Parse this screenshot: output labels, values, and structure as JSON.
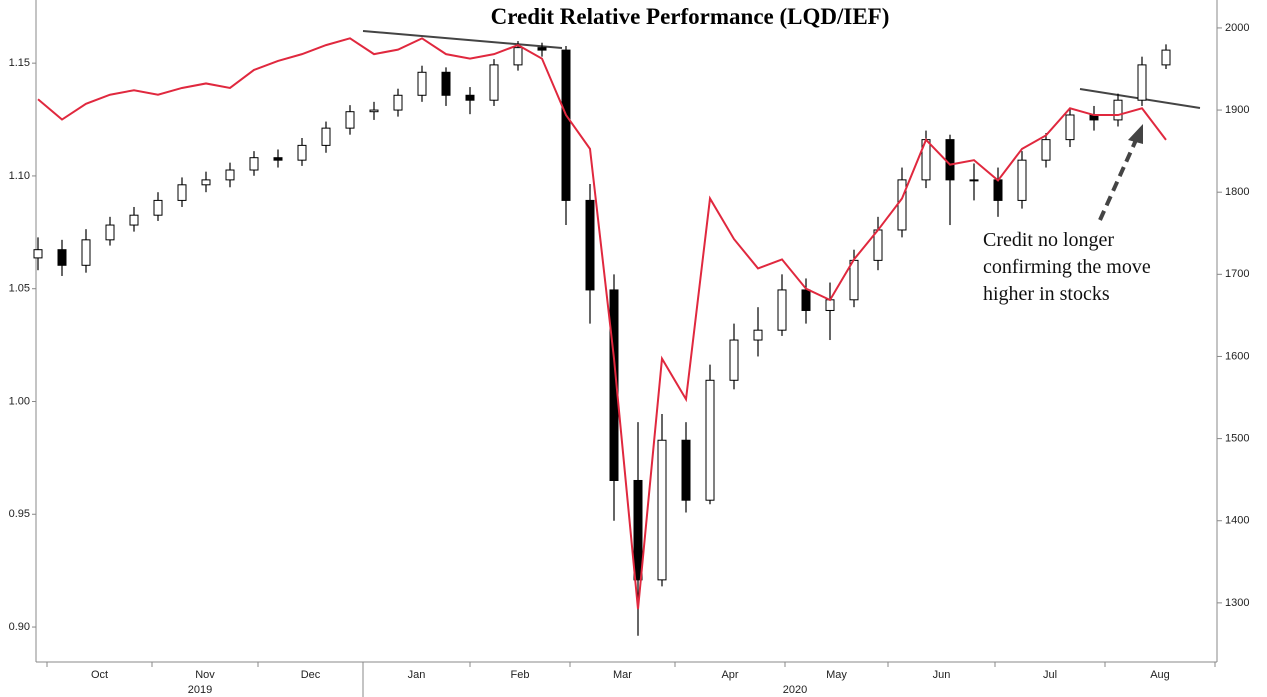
{
  "chart_data": {
    "type": "candlestick",
    "title": "Credit Relative Performance (LQD/IEF)",
    "months": [
      "Oct",
      "Nov",
      "Dec",
      "Jan",
      "Feb",
      "Mar",
      "Apr",
      "May",
      "Jun",
      "Jul",
      "Aug"
    ],
    "years": [
      "2019",
      "2020"
    ],
    "annotation": [
      "Credit no longer",
      "confirming the move",
      "higher in stocks"
    ],
    "ylim": [
      0.8845,
      1.178
    ],
    "yticks": [
      {
        "value": 0.9,
        "label": "0.90"
      },
      0.95,
      {
        "value": 1.0,
        "label": "1.00"
      },
      1.05,
      {
        "value": 1.1,
        "label": "1.10"
      },
      1.15
    ],
    "y2lim": [
      1228,
      2034
    ],
    "y2ticks": [
      1300,
      1400,
      1500,
      1600,
      1700,
      1800,
      1900,
      2000
    ],
    "candles": {
      "axis": "y2",
      "up_color": "#ffffff",
      "down_color": "#000000",
      "open": [
        1720,
        1730,
        1711,
        1742,
        1760,
        1772,
        1790,
        1809,
        1815,
        1827,
        1842,
        1839,
        1857,
        1878,
        1898,
        1900,
        1918,
        1946,
        1918,
        1912,
        1955,
        1976,
        1973,
        1790,
        1681,
        1449,
        1328,
        1498,
        1425,
        1571,
        1620,
        1632,
        1681,
        1656,
        1669,
        1717,
        1754,
        1815,
        1864,
        1815,
        1815,
        1790,
        1839,
        1864,
        1894,
        1888,
        1912,
        1955
      ],
      "high": [
        1745,
        1742,
        1755,
        1770,
        1782,
        1800,
        1818,
        1825,
        1836,
        1850,
        1852,
        1866,
        1886,
        1906,
        1910,
        1926,
        1954,
        1952,
        1928,
        1962,
        1984,
        1982,
        1978,
        1810,
        1700,
        1520,
        1530,
        1520,
        1590,
        1640,
        1660,
        1700,
        1695,
        1690,
        1730,
        1770,
        1830,
        1875,
        1870,
        1835,
        1830,
        1850,
        1872,
        1902,
        1905,
        1920,
        1965,
        1980
      ],
      "low": [
        1705,
        1698,
        1702,
        1735,
        1752,
        1765,
        1782,
        1800,
        1806,
        1820,
        1830,
        1832,
        1848,
        1870,
        1888,
        1892,
        1910,
        1905,
        1895,
        1905,
        1948,
        1965,
        1760,
        1640,
        1400,
        1260,
        1320,
        1410,
        1420,
        1560,
        1600,
        1625,
        1640,
        1620,
        1660,
        1705,
        1745,
        1805,
        1760,
        1790,
        1770,
        1780,
        1830,
        1855,
        1875,
        1880,
        1905,
        1950
      ],
      "close": [
        1730,
        1711,
        1742,
        1760,
        1772,
        1790,
        1809,
        1815,
        1827,
        1842,
        1839,
        1857,
        1878,
        1898,
        1900,
        1918,
        1946,
        1918,
        1912,
        1955,
        1976,
        1973,
        1790,
        1681,
        1449,
        1328,
        1498,
        1425,
        1571,
        1620,
        1632,
        1681,
        1656,
        1669,
        1717,
        1754,
        1815,
        1864,
        1815,
        1815,
        1790,
        1839,
        1864,
        1894,
        1888,
        1912,
        1955,
        1973
      ]
    },
    "overlay": {
      "type": "line",
      "color": "#e0283e",
      "values": [
        1.134,
        1.125,
        1.132,
        1.136,
        1.138,
        1.136,
        1.139,
        1.141,
        1.139,
        1.147,
        1.151,
        1.154,
        1.158,
        1.161,
        1.154,
        1.156,
        1.161,
        1.154,
        1.152,
        1.154,
        1.158,
        1.152,
        1.127,
        1.112,
        1.019,
        0.908,
        1.019,
        1.001,
        1.09,
        1.072,
        1.059,
        1.063,
        1.05,
        1.045,
        1.063,
        1.076,
        1.09,
        1.116,
        1.105,
        1.107,
        1.098,
        1.112,
        1.118,
        1.13,
        1.127,
        1.127,
        1.13,
        1.116
      ]
    }
  }
}
